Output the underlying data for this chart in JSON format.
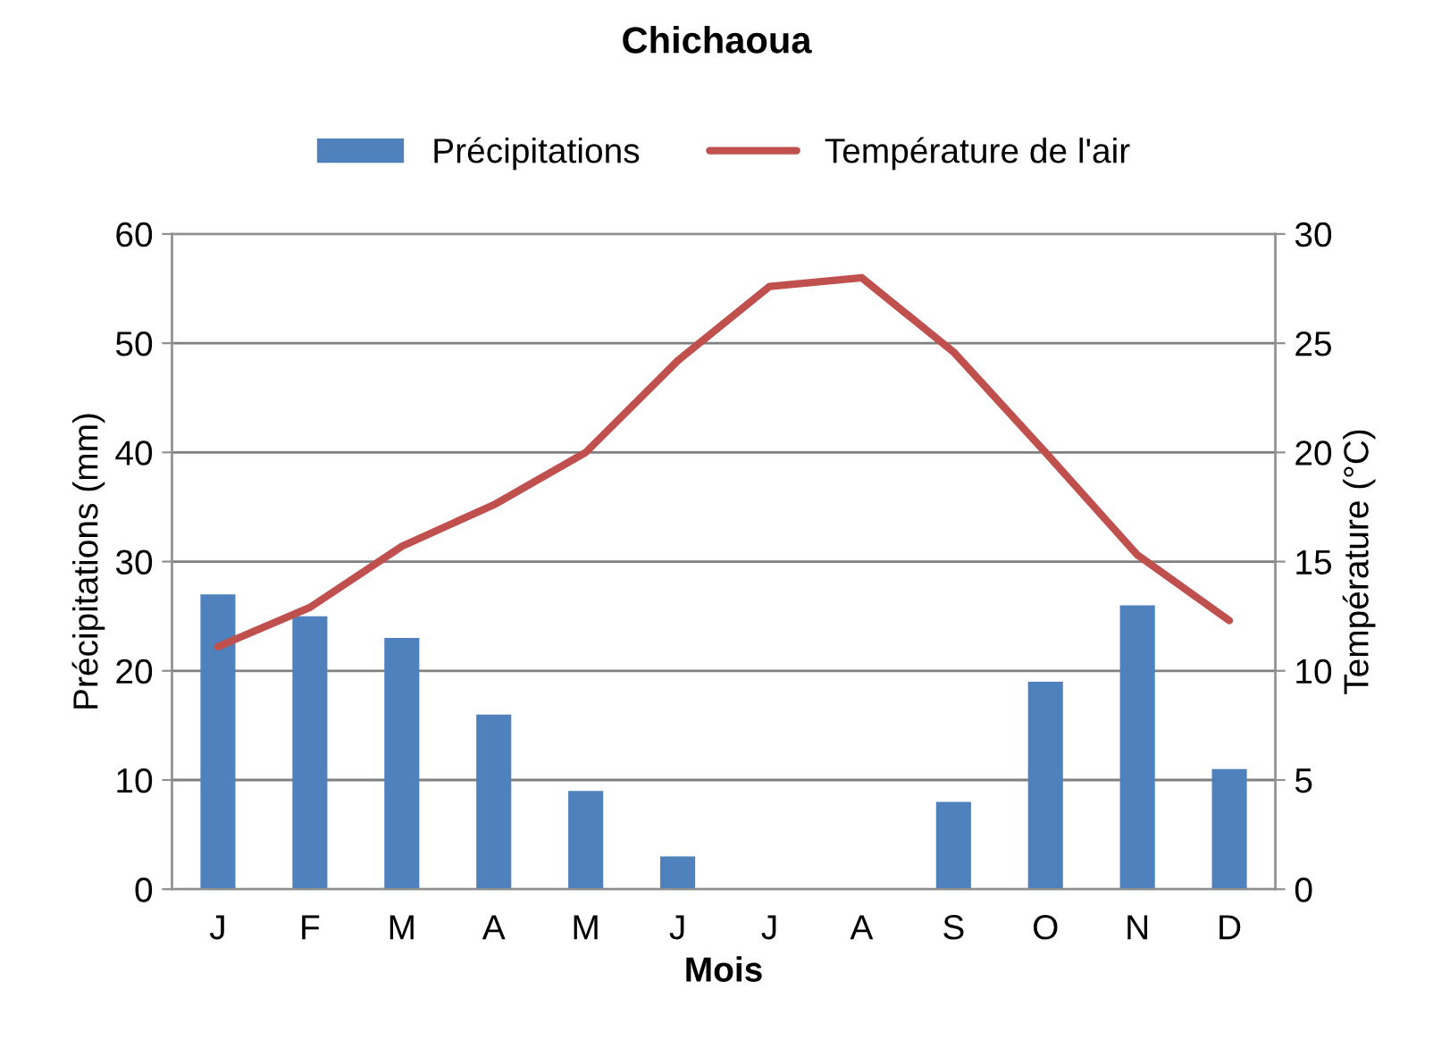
{
  "chart_data": {
    "type": "bar",
    "title": "Chichaoua",
    "xlabel": "Mois",
    "ylabel": "Précipitations (mm)",
    "y2label": "Température (°C)",
    "categories": [
      "J",
      "F",
      "M",
      "A",
      "M",
      "J",
      "J",
      "A",
      "S",
      "O",
      "N",
      "D"
    ],
    "series": [
      {
        "name": "Précipitations",
        "color": "#4f81bd",
        "values": [
          27,
          25,
          23,
          16,
          9,
          3,
          0,
          0,
          8,
          19,
          26,
          11
        ]
      },
      {
        "name": "Température de l'air",
        "type": "line",
        "axis": "y2",
        "color": "#c0504d",
        "values": [
          11.1,
          12.9,
          15.7,
          17.6,
          20,
          24.2,
          27.6,
          28,
          24.6,
          20,
          15.3,
          12.3
        ]
      }
    ],
    "ylim": [
      0,
      60
    ],
    "yticks": [
      0,
      10,
      20,
      30,
      40,
      50,
      60
    ],
    "y2lim": [
      0,
      30
    ],
    "y2ticks": [
      0,
      5,
      10,
      15,
      20,
      25,
      30
    ],
    "grid": "y",
    "legend": "top",
    "marker": "none",
    "line_style": "solid"
  }
}
